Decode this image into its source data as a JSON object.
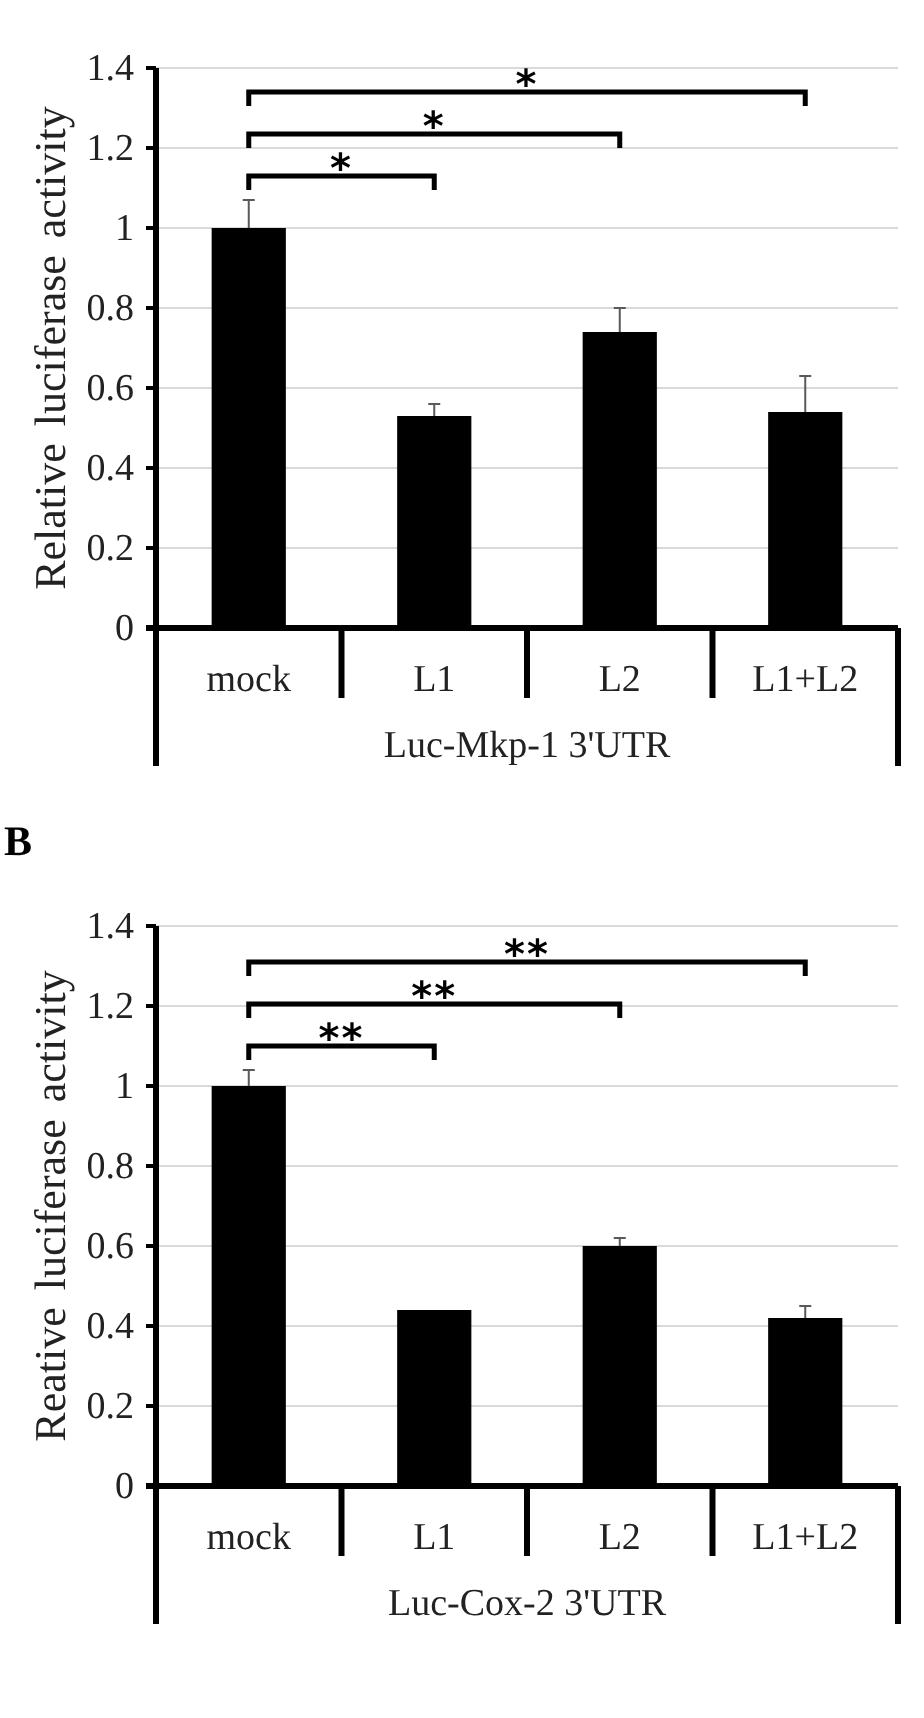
{
  "chart_data": [
    {
      "type": "bar",
      "categories": [
        "mock",
        "L1",
        "L2",
        "L1+L2"
      ],
      "values": [
        1,
        0.53,
        0.74,
        0.54
      ],
      "color": "#000000",
      "errors": [
        [
          1,
          1.07
        ],
        [
          0.53,
          0.56
        ],
        [
          0.74,
          0.8
        ],
        [
          0.54,
          0.63
        ]
      ],
      "ylim": [
        0,
        1.4
      ],
      "yticks": [
        0,
        0.2,
        0.4,
        0.6,
        0.8,
        1,
        1.2,
        1.4
      ],
      "grid": "y",
      "ylabel": "Relative luciferase activity",
      "xlabel": "Luc-Mkp-1 3'UTR",
      "annotations": [
        "*",
        "*",
        "*"
      ]
    },
    {
      "type": "bar",
      "title": "B",
      "categories": [
        "mock",
        "L1",
        "L2",
        "L1+L2"
      ],
      "values": [
        1,
        0.44,
        0.6,
        0.42
      ],
      "color": "#000000",
      "errors": [
        [
          1,
          1.04
        ],
        null,
        [
          0.6,
          0.62
        ],
        [
          0.42,
          0.45
        ]
      ],
      "ylim": [
        0,
        1.4
      ],
      "yticks": [
        0,
        0.2,
        0.4,
        0.6,
        0.8,
        1,
        1.2,
        1.4
      ],
      "grid": "y",
      "ylabel": "Reative luciferase activity",
      "xlabel": "Luc-Cox-2 3'UTR",
      "annotations": [
        "**",
        "**",
        "**"
      ]
    }
  ]
}
